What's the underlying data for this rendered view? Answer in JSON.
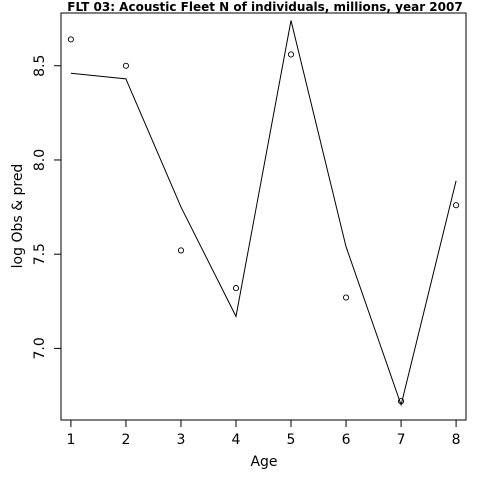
{
  "chart_data": {
    "type": "line",
    "title": "FLT 03: Acoustic Fleet  N of individuals, millions, year 2007",
    "xlabel": "Age",
    "ylabel": "log Obs & pred",
    "x": [
      1,
      2,
      3,
      4,
      5,
      6,
      7,
      8
    ],
    "x_ticks": [
      "1",
      "2",
      "3",
      "4",
      "5",
      "6",
      "7",
      "8"
    ],
    "y_ticks": [
      "7.0",
      "7.5",
      "8.0",
      "8.5"
    ],
    "xlim": [
      0.82,
      8.18
    ],
    "ylim": [
      6.62,
      8.78
    ],
    "grid": false,
    "series": [
      {
        "role": "observed",
        "mark": "open-circle",
        "values": [
          8.64,
          8.5,
          7.52,
          7.32,
          8.56,
          7.27,
          6.72,
          7.76
        ]
      },
      {
        "role": "predicted",
        "mark": "line",
        "values": [
          8.46,
          8.43,
          7.75,
          7.17,
          8.74,
          7.54,
          6.7,
          7.89
        ]
      }
    ]
  }
}
